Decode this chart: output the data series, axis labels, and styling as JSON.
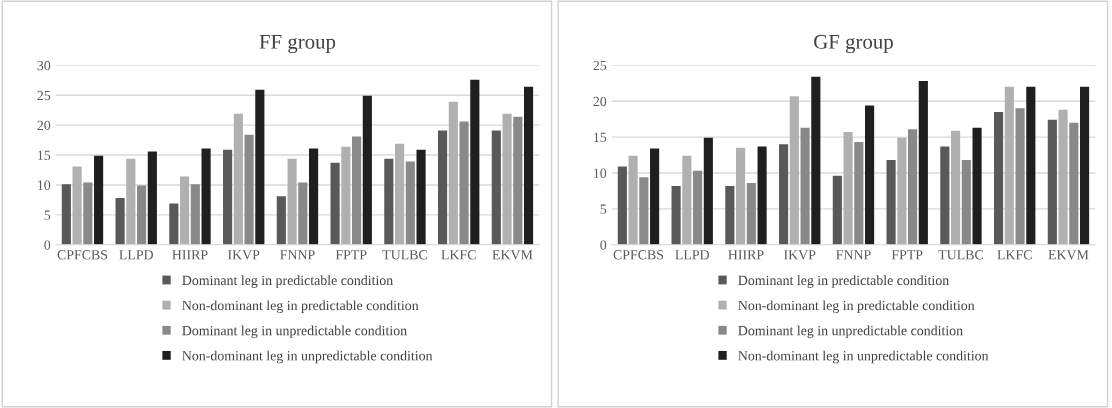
{
  "chart_data": [
    {
      "type": "bar",
      "title": "FF group",
      "categories": [
        "CPFCBS",
        "LLPD",
        "HIIRP",
        "IKVP",
        "FNNP",
        "FPTP",
        "TULBC",
        "LKFC",
        "EKVM"
      ],
      "ylim": [
        0,
        30
      ],
      "yticks": [
        0,
        5,
        10,
        15,
        20,
        25,
        30
      ],
      "grid": "y",
      "legend": "bottom",
      "series": [
        {
          "name": "Dominant leg in predictable condition",
          "color": "#595959",
          "values": [
            10.1,
            7.8,
            6.9,
            15.9,
            8.1,
            13.7,
            14.4,
            19.1,
            19.1
          ]
        },
        {
          "name": "Non-dominant leg in predictable condition",
          "color": "#b0b0b0",
          "values": [
            13.1,
            14.4,
            11.4,
            21.9,
            14.4,
            16.4,
            16.9,
            23.9,
            21.9
          ]
        },
        {
          "name": "Dominant leg in unpredictable condition",
          "color": "#898989",
          "values": [
            10.4,
            9.9,
            10.1,
            18.4,
            10.4,
            18.1,
            13.9,
            20.6,
            21.4
          ]
        },
        {
          "name": "Non-dominant leg in unpredictable condition",
          "color": "#1f1f1f",
          "values": [
            14.9,
            15.6,
            16.1,
            25.9,
            16.1,
            24.9,
            15.9,
            27.6,
            26.4
          ]
        }
      ]
    },
    {
      "type": "bar",
      "title": "GF group",
      "categories": [
        "CPFCBS",
        "LLPD",
        "HIIRP",
        "IKVP",
        "FNNP",
        "FPTP",
        "TULBC",
        "LKFC",
        "EKVM"
      ],
      "ylim": [
        0,
        25
      ],
      "yticks": [
        0,
        5,
        10,
        15,
        20,
        25
      ],
      "grid": "y",
      "legend": "bottom",
      "series": [
        {
          "name": "Dominant leg in predictable condition",
          "color": "#595959",
          "values": [
            10.9,
            8.2,
            8.2,
            14.0,
            9.6,
            11.8,
            13.7,
            18.5,
            17.4
          ]
        },
        {
          "name": "Non-dominant leg in predictable condition",
          "color": "#b0b0b0",
          "values": [
            12.4,
            12.4,
            13.5,
            20.7,
            15.7,
            14.9,
            15.9,
            22.0,
            18.8
          ]
        },
        {
          "name": "Dominant leg in unpredictable condition",
          "color": "#898989",
          "values": [
            9.4,
            10.3,
            8.6,
            16.3,
            14.3,
            16.1,
            11.8,
            19.0,
            17.0
          ]
        },
        {
          "name": "Non-dominant leg in unpredictable condition",
          "color": "#1f1f1f",
          "values": [
            13.4,
            14.9,
            13.7,
            23.4,
            19.4,
            22.8,
            16.3,
            22.0,
            22.0
          ]
        }
      ]
    }
  ]
}
